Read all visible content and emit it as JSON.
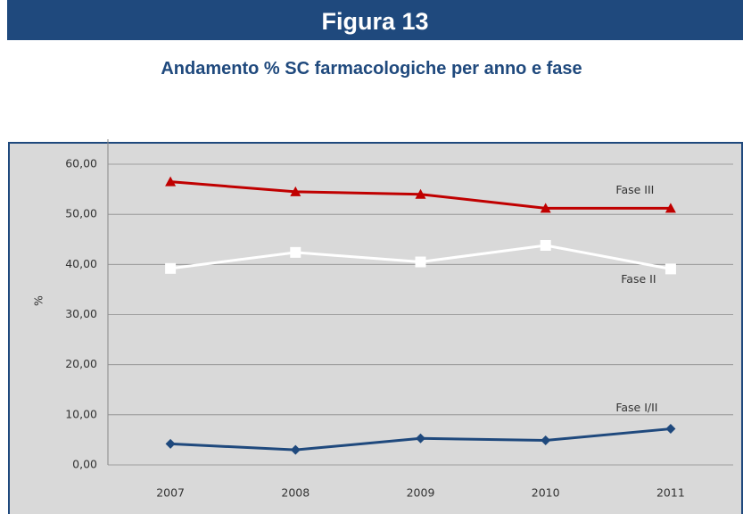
{
  "header": {
    "title": "Figura 13",
    "subtitle": "Andamento % SC farmacologiche per anno e fase"
  },
  "chart_data": {
    "type": "line",
    "categories": [
      "2007",
      "2008",
      "2009",
      "2010",
      "2011"
    ],
    "ylabel": "%",
    "ylim": [
      0,
      60
    ],
    "yticks": [
      {
        "value": 0,
        "label": "0,00"
      },
      {
        "value": 10,
        "label": "10,00"
      },
      {
        "value": 20,
        "label": "20,00"
      },
      {
        "value": 30,
        "label": "30,00"
      },
      {
        "value": 40,
        "label": "40,00"
      },
      {
        "value": 50,
        "label": "50,00"
      },
      {
        "value": 60,
        "label": "60,00"
      }
    ],
    "grid": true,
    "series": [
      {
        "name": "Fase III",
        "color": "#c00000",
        "marker": "triangle",
        "values": [
          56.5,
          54.5,
          54.0,
          51.2,
          51.2
        ]
      },
      {
        "name": "Fase II",
        "color": "#ffffff",
        "marker": "square",
        "values": [
          39.2,
          42.4,
          40.5,
          43.8,
          39.1
        ]
      },
      {
        "name": "Fase I/II",
        "color": "#1f497d",
        "marker": "diamond",
        "values": [
          4.2,
          3.0,
          5.3,
          4.9,
          7.2
        ]
      }
    ]
  }
}
